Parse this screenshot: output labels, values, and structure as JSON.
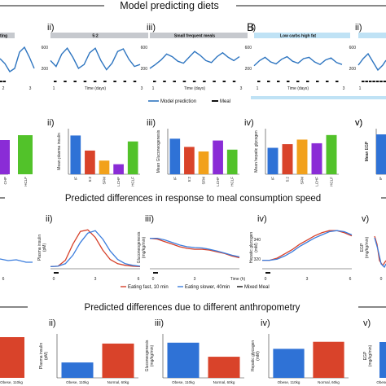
{
  "headers": {
    "model_predicting_diets": "Model predicting diets",
    "panel_b": "B",
    "meal_speed": "Predicted differences in response to meal consumption speed",
    "anthropometry": "Predicted differences due to different anthropometry"
  },
  "colors": {
    "model_line": "#2e75c0",
    "meal_mark": "#111111",
    "band": "#c6c9ce",
    "band_b": "#bfe2f5",
    "fast": "#d6402a",
    "slow": "#3b7ddd",
    "mixed": "#111111"
  },
  "row1": {
    "panels": [
      {
        "roman": "",
        "title": "ting",
        "ticks_x": [
          "2",
          "3"
        ],
        "ticks_y": []
      },
      {
        "roman": "ii)",
        "title": "5:2",
        "ticks_x": [
          "1",
          "Time (days)",
          "3"
        ],
        "ticks_y": [
          "600",
          "200"
        ]
      },
      {
        "roman": "iii)",
        "title": "Small frequent meals",
        "ticks_x": [
          "1",
          "Time (days)",
          "3"
        ],
        "ticks_y": [
          "600",
          "200"
        ]
      },
      {
        "roman": "i)",
        "title": "Low carbs high fat",
        "ticks_x": [
          "1",
          "Time (days)",
          "3"
        ],
        "ticks_y": [
          "600",
          "200"
        ]
      },
      {
        "roman": "ii)",
        "title": "",
        "ticks_x": [
          "1"
        ],
        "ticks_y": [
          "600",
          "200"
        ]
      }
    ],
    "legend": {
      "model": "Model prediction",
      "meal": "Meal"
    }
  },
  "row2": {
    "panels": [
      {
        "roman": "",
        "ylabel": "",
        "categories": [
          "CHP",
          "HCLF"
        ]
      },
      {
        "roman": "ii)",
        "ylabel": "Mean plasma insulin",
        "categories": [
          "IF",
          "5:2",
          "SFM",
          "LCHF",
          "HCLF"
        ]
      },
      {
        "roman": "iii)",
        "ylabel": "Mean Gluconeogenesis",
        "categories": [
          "IF",
          "5:2",
          "SFM",
          "LCHF",
          "HCLF"
        ]
      },
      {
        "roman": "iv)",
        "ylabel": "Mean hepatic glycogen",
        "categories": [
          "IF",
          "5:2",
          "SFM",
          "LCHF",
          "HCLF"
        ]
      },
      {
        "roman": "v)",
        "ylabel": "Mean EGP",
        "categories": [
          "IF"
        ]
      }
    ]
  },
  "row3": {
    "panels": [
      {
        "roman": "",
        "ylabel": "",
        "ticks_x": [
          "6"
        ]
      },
      {
        "roman": "ii)",
        "ylabel": "Plasma insulin",
        "unit": "(pM)",
        "ticks_x": [
          "0",
          "3",
          "6"
        ]
      },
      {
        "roman": "iii)",
        "ylabel": "Gluconeogenesis",
        "unit": "(mg/kg/min)",
        "ticks_x": [
          "0",
          "3",
          "Time (h)"
        ]
      },
      {
        "roman": "iv)",
        "ylabel": "Hepatic glycogen",
        "unit": "(mM)",
        "ticks_x": [
          "0",
          "3",
          "6"
        ],
        "ticks_y": [
          "340",
          "320"
        ]
      },
      {
        "roman": "v)",
        "ylabel": "EGP",
        "unit": "(mg/kg/min)",
        "ticks_x": [
          "0"
        ]
      }
    ],
    "legend": {
      "fast": "Eating fast, 10 min",
      "slow": "Eating slower, 40min",
      "mixed": "Mixed Meal"
    }
  },
  "row4": {
    "panels": [
      {
        "roman": "",
        "ylabel": "",
        "categories": [
          "Obese, 110kg"
        ]
      },
      {
        "roman": "ii)",
        "ylabel": "Plasma insulin",
        "unit": "(pM)",
        "categories": [
          "Obese, 110kg",
          "Normal, 60kg"
        ]
      },
      {
        "roman": "iii)",
        "ylabel": "Gluconeogenesis",
        "unit": "(mg/kg/min)",
        "categories": [
          "Obese, 110kg",
          "Normal, 60kg"
        ]
      },
      {
        "roman": "iv)",
        "ylabel": "Hepatic glycogen",
        "unit": "(mM)",
        "categories": [
          "Obese, 110kg",
          "Normal, 60kg"
        ]
      },
      {
        "roman": "v)",
        "ylabel": "EGP",
        "unit": "(mg/kg/min)",
        "categories": [
          "Obese"
        ]
      }
    ]
  },
  "chart_data": [
    {
      "type": "line",
      "panel": "row1-ii",
      "title": "5:2",
      "xlabel": "Time (days)",
      "xlim": [
        0,
        3.2
      ],
      "ylim": [
        150,
        700
      ],
      "series": [
        {
          "values": [
            420,
            330,
            520,
            610,
            470,
            300,
            360,
            540,
            610,
            420,
            280,
            380,
            560,
            600,
            440,
            330,
            360
          ]
        }
      ]
    },
    {
      "type": "line",
      "panel": "row1-iii",
      "title": "Small frequent meals",
      "xlabel": "Time (days)",
      "xlim": [
        0,
        3.2
      ],
      "ylim": [
        150,
        700
      ],
      "series": [
        {
          "values": [
            300,
            360,
            430,
            520,
            480,
            410,
            380,
            470,
            560,
            500,
            420,
            390,
            480,
            540,
            470,
            420,
            480
          ]
        }
      ]
    },
    {
      "type": "line",
      "panel": "B-i",
      "title": "Low carbs high fat",
      "xlabel": "Time (days)",
      "xlim": [
        0,
        3.2
      ],
      "ylim": [
        150,
        700
      ],
      "series": [
        {
          "values": [
            340,
            420,
            470,
            400,
            370,
            440,
            480,
            410,
            380,
            450,
            470,
            400,
            360,
            430,
            460,
            390,
            360
          ]
        }
      ]
    },
    {
      "type": "bar",
      "panel": "row2-ii",
      "ylabel": "Mean plasma insulin",
      "categories": [
        "IF",
        "5:2",
        "SFM",
        "LCHF",
        "HCLF"
      ],
      "values": [
        85,
        52,
        30,
        22,
        72
      ],
      "colors": [
        "#2f72d6",
        "#d9432a",
        "#f2a11b",
        "#8a2cd6",
        "#52c22a"
      ],
      "ylim": [
        0,
        100
      ]
    },
    {
      "type": "bar",
      "panel": "row2-iii",
      "ylabel": "Mean Gluconeogenesis",
      "categories": [
        "IF",
        "5:2",
        "SFM",
        "LCHF",
        "HCLF"
      ],
      "values": [
        78,
        60,
        50,
        74,
        54
      ],
      "colors": [
        "#2f72d6",
        "#d9432a",
        "#f2a11b",
        "#8a2cd6",
        "#52c22a"
      ],
      "ylim": [
        0,
        100
      ]
    },
    {
      "type": "bar",
      "panel": "row2-iv",
      "ylabel": "Mean hepatic glycogen",
      "categories": [
        "IF",
        "5:2",
        "SFM",
        "LCHF",
        "HCLF"
      ],
      "values": [
        58,
        66,
        76,
        68,
        86
      ],
      "colors": [
        "#2f72d6",
        "#d9432a",
        "#f2a11b",
        "#8a2cd6",
        "#52c22a"
      ],
      "ylim": [
        0,
        100
      ]
    },
    {
      "type": "line",
      "panel": "row3-ii",
      "ylabel": "Plasma insulin",
      "xlabel": "",
      "xlim": [
        0,
        6
      ],
      "ylim": [
        0,
        100
      ],
      "x": [
        0,
        0.5,
        1,
        1.5,
        2,
        2.5,
        3,
        3.5,
        4,
        4.5,
        5,
        5.5,
        6
      ],
      "series": [
        {
          "name": "Eating fast, 10 min",
          "values": [
            5,
            6,
            20,
            58,
            88,
            92,
            74,
            44,
            22,
            12,
            8,
            6,
            5
          ]
        },
        {
          "name": "Eating slower, 40min",
          "values": [
            5,
            6,
            12,
            32,
            62,
            84,
            90,
            70,
            42,
            22,
            12,
            8,
            6
          ]
        }
      ]
    },
    {
      "type": "line",
      "panel": "row3-iii",
      "ylabel": "Gluconeogenesis",
      "xlabel": "Time (h)",
      "xlim": [
        0,
        6
      ],
      "ylim": [
        0,
        100
      ],
      "x": [
        0,
        0.5,
        1,
        1.5,
        2,
        2.5,
        3,
        3.5,
        4,
        4.5,
        5,
        5.5,
        6
      ],
      "series": [
        {
          "name": "Eating fast, 10 min",
          "values": [
            72,
            70,
            64,
            58,
            52,
            48,
            46,
            46,
            44,
            40,
            36,
            30,
            26
          ]
        },
        {
          "name": "Eating slower, 40min",
          "values": [
            72,
            72,
            68,
            62,
            56,
            52,
            50,
            49,
            46,
            42,
            37,
            32,
            28
          ]
        }
      ]
    },
    {
      "type": "line",
      "panel": "row3-iv",
      "ylabel": "Hepatic glycogen",
      "xlabel": "",
      "xlim": [
        0,
        6
      ],
      "ylim": [
        310,
        350
      ],
      "x": [
        0,
        0.5,
        1,
        1.5,
        2,
        2.5,
        3,
        3.5,
        4,
        4.5,
        5,
        5.5,
        6
      ],
      "series": [
        {
          "name": "Eating fast, 10 min",
          "values": [
            318,
            318,
            320,
            324,
            328,
            333,
            337,
            341,
            344,
            346,
            346,
            344,
            341
          ]
        },
        {
          "name": "Eating slower, 40min",
          "values": [
            318,
            318,
            319,
            322,
            326,
            331,
            335,
            339,
            342,
            345,
            346,
            345,
            342
          ]
        }
      ]
    },
    {
      "type": "bar",
      "panel": "row4-ii",
      "ylabel": "Plasma insulin",
      "categories": [
        "Obese, 110kg",
        "Normal, 60kg"
      ],
      "values": [
        35,
        78
      ],
      "colors": [
        "#2f72d6",
        "#d9432a"
      ],
      "ylim": [
        0,
        100
      ]
    },
    {
      "type": "bar",
      "panel": "row4-iii",
      "ylabel": "Gluconeogenesis",
      "categories": [
        "Obese, 110kg",
        "Normal, 60kg"
      ],
      "values": [
        80,
        48
      ],
      "colors": [
        "#2f72d6",
        "#d9432a"
      ],
      "ylim": [
        0,
        100
      ]
    },
    {
      "type": "bar",
      "panel": "row4-iv",
      "ylabel": "Hepatic glycogen",
      "categories": [
        "Obese, 110kg",
        "Normal, 60kg"
      ],
      "values": [
        66,
        82
      ],
      "colors": [
        "#2f72d6",
        "#d9432a"
      ],
      "ylim": [
        0,
        100
      ]
    }
  ]
}
